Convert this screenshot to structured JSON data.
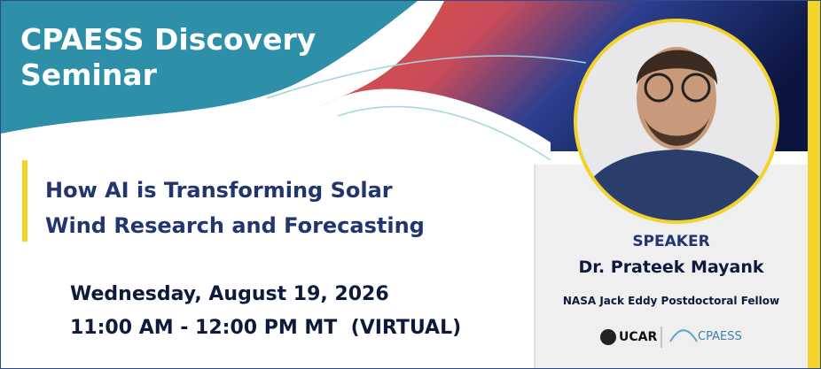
{
  "header": {
    "title_lines": [
      "CPAESS Discovery",
      "Seminar"
    ]
  },
  "talk": {
    "title_lines": [
      "How AI is Transforming Solar",
      "Wind Research and Forecasting"
    ],
    "date": "Wednesday, August 19, 2026",
    "time": "11:00 AM - 12:00 PM MT  (VIRTUAL)"
  },
  "speaker": {
    "label": "SPEAKER",
    "name": "Dr. Prateek Mayank",
    "role": "NASA Jack Eddy Postdoctoral Fellow"
  },
  "logos": [
    "UCAR",
    "CPAESS"
  ]
}
